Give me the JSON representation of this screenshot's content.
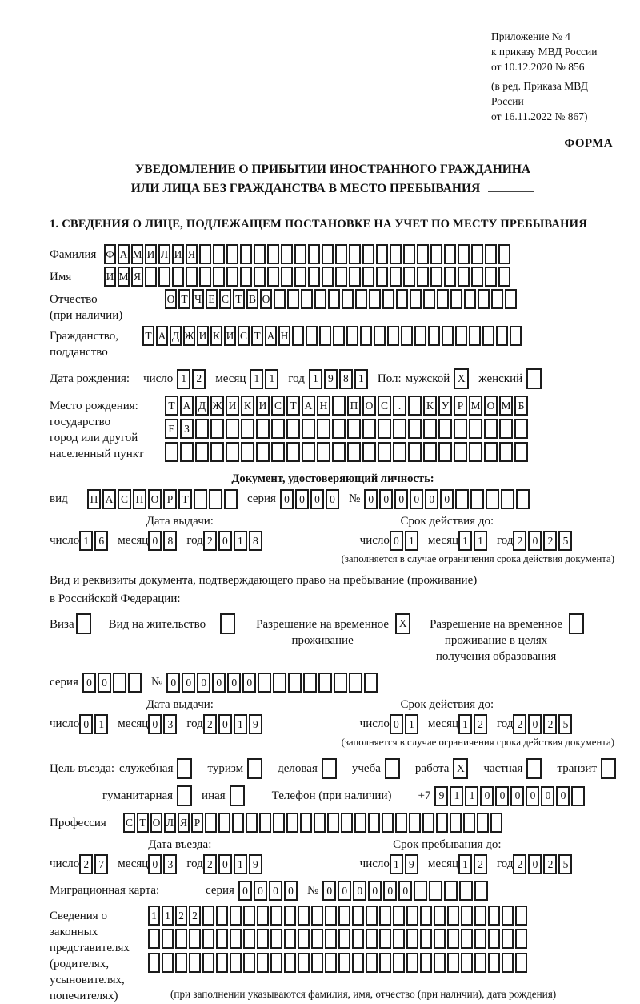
{
  "header": {
    "annex_lines": [
      "Приложение № 4",
      "к приказу МВД России",
      "от 10.12.2020 № 856"
    ],
    "amendment_lines": [
      "(в ред. Приказа МВД России",
      "от 16.11.2022 № 867)"
    ],
    "form_label": "ФОРМА"
  },
  "title": {
    "line1": "УВЕДОМЛЕНИЕ О ПРИБЫТИИ ИНОСТРАННОГО ГРАЖДАНИНА",
    "line2": "ИЛИ ЛИЦА БЕЗ ГРАЖДАНСТВА В МЕСТО ПРЕБЫВАНИЯ"
  },
  "section1_heading": "1. СВЕДЕНИЯ О ЛИЦЕ, ПОДЛЕЖАЩЕМ ПОСТАНОВКЕ НА УЧЕТ ПО МЕСТУ ПРЕБЫВАНИЯ",
  "labels": {
    "day": "число",
    "month": "месяц",
    "year": "год",
    "series": "серия",
    "number": "№"
  },
  "surname": {
    "label": "Фамилия",
    "boxes": {
      "value": "ФАМИЛИЯ",
      "total": 30
    }
  },
  "given_name": {
    "label": "Имя",
    "boxes": {
      "value": "ИМЯ",
      "total": 30
    }
  },
  "patronymic": {
    "label_lines": [
      "Отчество",
      "(при наличии)"
    ],
    "boxes": {
      "value": "ОТЧЕСТВО",
      "total": 26
    }
  },
  "citizenship": {
    "label_lines": [
      "Гражданство,",
      "подданство"
    ],
    "boxes": {
      "value": "ТАДЖИКИСТАН",
      "total": 28
    }
  },
  "birth_date": {
    "label": "Дата рождения:",
    "day": "12",
    "month": "11",
    "year": "1981",
    "sex_label": "Пол:",
    "male_label": "мужской",
    "male": "X",
    "female_label": "женский",
    "female": ""
  },
  "birth_place": {
    "label_lines": [
      "Место рождения:",
      "государство",
      "город или другой",
      "населенный пункт"
    ],
    "rows": [
      {
        "value": "ТАДЖИКИСТАН ПОС. КУРМОМБ",
        "total": 24
      },
      {
        "value": "ЕЗ",
        "total": 24
      },
      {
        "value": "",
        "total": 24
      }
    ]
  },
  "identity_doc": {
    "heading": "Документ, удостоверяющий личность:",
    "kind_label": "вид",
    "kind": {
      "value": "ПАСПОРТ",
      "total": 10
    },
    "series": {
      "value": "0000",
      "total": 4
    },
    "number": {
      "value": "000000",
      "total": 11
    },
    "issue": {
      "title": "Дата выдачи:",
      "day": "16",
      "month": "08",
      "year": "2018"
    },
    "expiry": {
      "title": "Срок действия до:",
      "day": "01",
      "month": "11",
      "year": "2025"
    },
    "note": "(заполняется в случае ограничения срока действия документа)"
  },
  "residence_doc": {
    "intro_line1": "Вид и реквизиты документа, подтверждающего право на пребывание (проживание)",
    "intro_line2": "в Российской Федерации:",
    "visa": {
      "label": "Виза",
      "checked": ""
    },
    "residence_permit": {
      "label": "Вид на жительство",
      "checked": ""
    },
    "temp_residence": {
      "line1": "Разрешение на временное",
      "line2": "проживание",
      "checked": "X"
    },
    "temp_residence_edu": {
      "line1": "Разрешение на временное",
      "line2": "проживание в целях",
      "line3": "получения образования",
      "checked": ""
    },
    "series": {
      "value": "00",
      "total": 4
    },
    "number": {
      "value": "000000",
      "total": 14
    },
    "issue": {
      "title": "Дата выдачи:",
      "day": "01",
      "month": "03",
      "year": "2019"
    },
    "expiry": {
      "title": "Срок действия до:",
      "day": "01",
      "month": "12",
      "year": "2025"
    },
    "note": "(заполняется в случае ограничения срока действия документа)"
  },
  "visit_purpose": {
    "label": "Цель въезда:",
    "options": [
      {
        "label": "служебная",
        "checked": ""
      },
      {
        "label": "туризм",
        "checked": ""
      },
      {
        "label": "деловая",
        "checked": ""
      },
      {
        "label": "учеба",
        "checked": ""
      },
      {
        "label": "работа",
        "checked": "X"
      },
      {
        "label": "частная",
        "checked": ""
      },
      {
        "label": "транзит",
        "checked": ""
      }
    ],
    "options2": [
      {
        "label": "гуманитарная",
        "checked": ""
      },
      {
        "label": "иная",
        "checked": ""
      }
    ]
  },
  "phone": {
    "label": "Телефон (при наличии)",
    "prefix": "+7",
    "boxes": {
      "value": "911000000",
      "total": 10
    }
  },
  "profession": {
    "label": "Профессия",
    "boxes": {
      "value": "СТОЛЯР",
      "total": 28
    }
  },
  "entry": {
    "arrival": {
      "title": "Дата въезда:",
      "day": "27",
      "month": "03",
      "year": "2019"
    },
    "stay_until": {
      "title": "Срок пребывания до:",
      "day": "19",
      "month": "12",
      "year": "2025"
    }
  },
  "migration_card": {
    "label": "Миграционная карта:",
    "series": {
      "value": "0000",
      "total": 4
    },
    "number": {
      "value": "000000",
      "total": 11
    }
  },
  "representatives": {
    "label_lines": [
      "Сведения о",
      "законных",
      "представителях",
      "(родителях,",
      "усыновителях,",
      "попечителях)"
    ],
    "rows": [
      {
        "value": "1122",
        "total": 28
      },
      {
        "value": "",
        "total": 28
      },
      {
        "value": "",
        "total": 28
      }
    ],
    "note": "(при заполнении указываются фамилия, имя, отчество (при наличии), дата рождения)"
  }
}
